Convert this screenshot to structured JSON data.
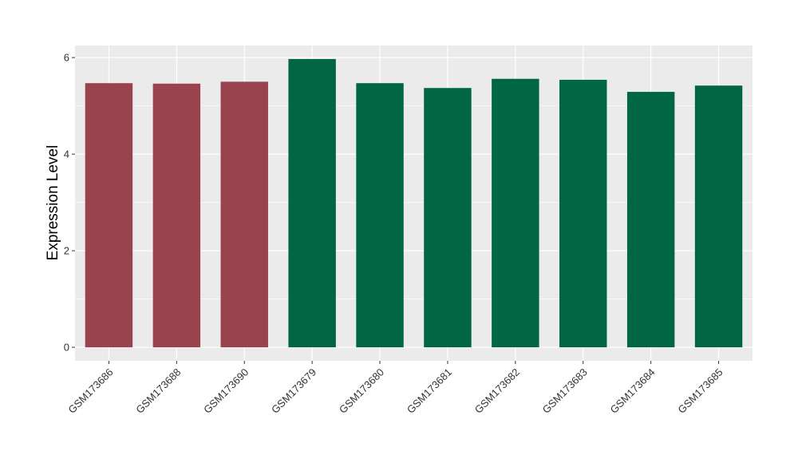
{
  "chart_data": {
    "type": "bar",
    "categories": [
      "GSM173686",
      "GSM173688",
      "GSM173690",
      "GSM173679",
      "GSM173680",
      "GSM173681",
      "GSM173682",
      "GSM173683",
      "GSM173684",
      "GSM173685"
    ],
    "values": [
      5.47,
      5.46,
      5.5,
      5.97,
      5.47,
      5.37,
      5.56,
      5.54,
      5.29,
      5.42
    ],
    "group": [
      "a",
      "a",
      "a",
      "b",
      "b",
      "b",
      "b",
      "b",
      "b",
      "b"
    ],
    "group_colors": {
      "a": "#99434f",
      "b": "#006644"
    },
    "xlabel": "",
    "ylabel": "Expression Level",
    "ylim": [
      -0.28,
      6.25
    ],
    "yticks": [
      0,
      2,
      4,
      6
    ],
    "grid": true,
    "legend": "none",
    "panel_background": "#ebebeb",
    "grid_color": "#ffffff"
  }
}
